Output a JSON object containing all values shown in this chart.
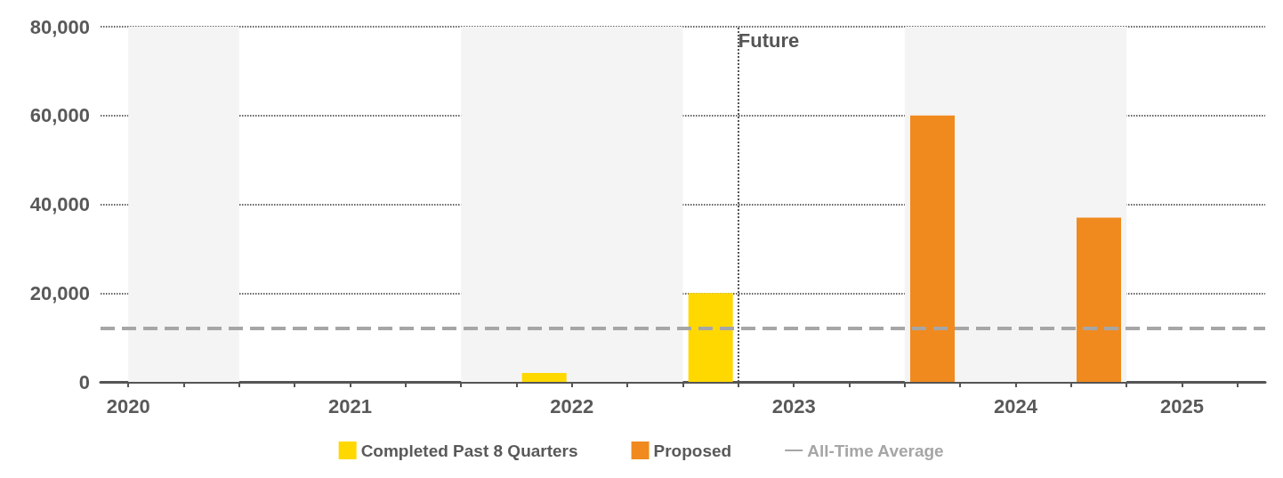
{
  "chart_data": {
    "type": "bar",
    "stacked": true,
    "x": [
      2022.375,
      2023.125,
      2024.125,
      2024.875
    ],
    "series": [
      {
        "name": "Completed Past 8 Quarters",
        "color": "#ffd800",
        "values": [
          2000,
          20000,
          null,
          null
        ]
      },
      {
        "name": "Proposed",
        "color": "#f08a1e",
        "values": [
          null,
          null,
          60000,
          37000
        ]
      }
    ],
    "xlim": [
      2020.375,
      2025.625
    ],
    "xticks": [
      {
        "value": 2020.5,
        "label": "2020"
      },
      {
        "value": 2020.75,
        "label": null
      },
      {
        "value": 2021,
        "label": null
      },
      {
        "value": 2021.25,
        "label": null
      },
      {
        "value": 2021.5,
        "label": "2021"
      },
      {
        "value": 2021.75,
        "label": null
      },
      {
        "value": 2022,
        "label": null
      },
      {
        "value": 2022.25,
        "label": null
      },
      {
        "value": 2022.5,
        "label": "2022"
      },
      {
        "value": 2022.75,
        "label": null
      },
      {
        "value": 2023,
        "label": null
      },
      {
        "value": 2023.25,
        "label": null
      },
      {
        "value": 2023.5,
        "label": "2023"
      },
      {
        "value": 2023.75,
        "label": null
      },
      {
        "value": 2024,
        "label": null
      },
      {
        "value": 2024.25,
        "label": null
      },
      {
        "value": 2024.5,
        "label": "2024"
      },
      {
        "value": 2024.75,
        "label": null
      },
      {
        "value": 2025,
        "label": null
      },
      {
        "value": 2025.25,
        "label": "2025"
      },
      {
        "value": 2025.5,
        "label": null
      }
    ],
    "ylim": [
      0,
      80000
    ],
    "yticks": [
      {
        "value": 0,
        "label": "0"
      },
      {
        "value": 20000,
        "label": "20,000"
      },
      {
        "value": 40000,
        "label": "40,000"
      },
      {
        "value": 60000,
        "label": "60,000"
      },
      {
        "value": 80000,
        "label": "80,000"
      }
    ],
    "grid": "y",
    "legend": "bottom",
    "ref_lines": [
      {
        "axis": "y",
        "value": 12000,
        "label": "All-Time Average",
        "color": "#a6a6a6",
        "line_style": "dashed"
      },
      {
        "axis": "x",
        "value": 2023.25,
        "label": "Future",
        "color": "#555555",
        "line_style": "dotted"
      }
    ],
    "bands": [
      {
        "axis": "x",
        "from": 2020.5,
        "to": 2021,
        "color": "#f4f4f4"
      },
      {
        "axis": "x",
        "from": 2022,
        "to": 2023,
        "color": "#f4f4f4"
      },
      {
        "axis": "x",
        "from": 2024,
        "to": 2025,
        "color": "#f4f4f4"
      }
    ]
  }
}
